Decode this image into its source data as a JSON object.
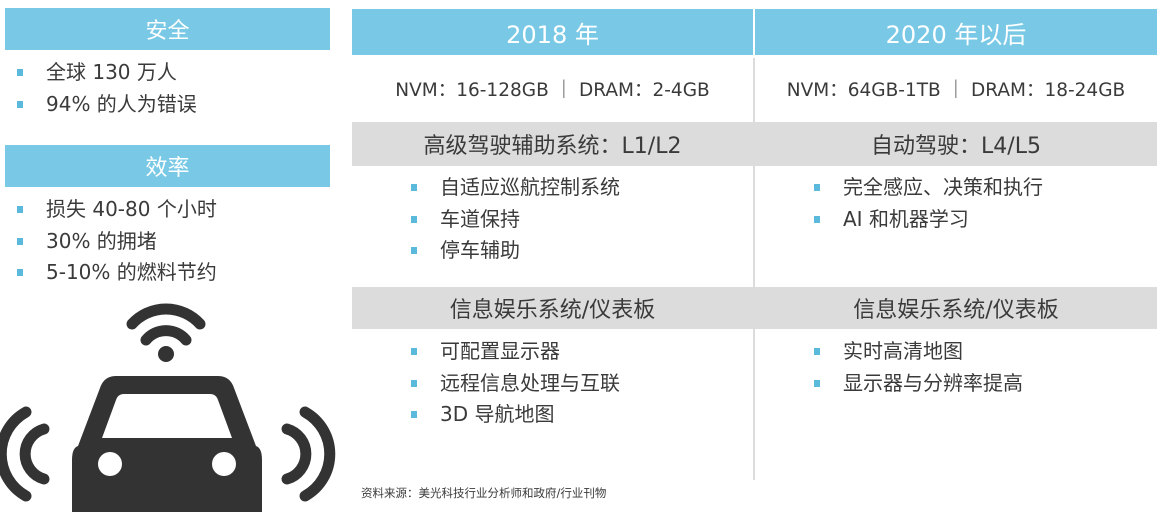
{
  "left": {
    "safety": {
      "title": "安全",
      "items": [
        "全球 130 万人",
        "94% 的人为错误"
      ]
    },
    "efficiency": {
      "title": "效率",
      "items": [
        "损失 40-80 个小时",
        "30% 的拥堵",
        "5-10% 的燃料节约"
      ]
    }
  },
  "columns": [
    {
      "year": "2018 年",
      "memory": "NVM：16-128GB ｜ DRAM：2-4GB",
      "adas_title": "高级驾驶辅助系统：L1/L2",
      "adas_items": [
        "自适应巡航控制系统",
        "车道保持",
        "停车辅助"
      ],
      "info_title": "信息娱乐系统/仪表板",
      "info_items": [
        "可配置显示器",
        "远程信息处理与互联",
        "3D 导航地图"
      ]
    },
    {
      "year": "2020 年以后",
      "memory": "NVM：64GB-1TB ｜ DRAM：18-24GB",
      "adas_title": "自动驾驶：L4/L5",
      "adas_items": [
        "完全感应、决策和执行",
        "AI 和机器学习"
      ],
      "info_title": "信息娱乐系统/仪表板",
      "info_items": [
        "实时高清地图",
        "显示器与分辨率提高"
      ]
    }
  ],
  "source": "资料来源：美光科技行业分析师和政府/行业刊物",
  "icons": {
    "car": "connected-car-icon"
  },
  "colors": {
    "accent": "#79c9e6",
    "gray_band": "#dcdcdc",
    "bullet": "#5bb9dc",
    "text": "#3a3a3a",
    "icon": "#333333"
  }
}
